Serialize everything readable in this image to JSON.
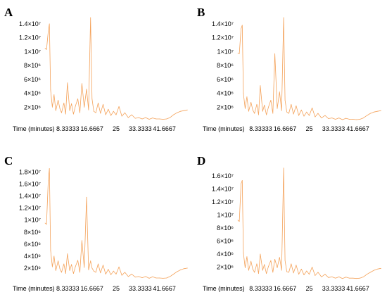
{
  "chart_data": [
    {
      "type": "line",
      "label": "A",
      "xlabel": "Time (minutes)",
      "ylabel": "",
      "xticks": [
        "8.33333",
        "16.6667",
        "25",
        "33.3333",
        "41.6667"
      ],
      "yticks": [
        "2×10⁶",
        "4×10⁶",
        "6×10⁶",
        "8×10⁶",
        "1×10⁷",
        "1.2×10⁷",
        "1.4×10⁷"
      ],
      "xlim": [
        0,
        50
      ],
      "ylim": [
        0,
        15000000
      ],
      "series": [
        {
          "color": "#f4a25a",
          "x": [
            0.5,
            1.0,
            1.6,
            2.0,
            2.4,
            3.0,
            3.6,
            4.2,
            5.0,
            5.6,
            6.2,
            7.0,
            7.6,
            8.2,
            9.0,
            9.6,
            10.3,
            11.0,
            11.8,
            12.5,
            13.2,
            14.0,
            14.8,
            15.5,
            16.2,
            16.7,
            17.3,
            18.0,
            18.8,
            19.6,
            20.5,
            21.4,
            22.3,
            23.2,
            24.1,
            25.0,
            26.0,
            27.0,
            28.0,
            29.2,
            30.4,
            31.6,
            32.8,
            34.0,
            35.2,
            36.4,
            37.6,
            38.8,
            40.0,
            41.2,
            42.4,
            43.6,
            44.8,
            46.0,
            47.2,
            48.4,
            49.6
          ],
          "y": [
            10500000,
            10300000,
            12900000,
            14000000,
            4500000,
            2000000,
            3800000,
            1500000,
            3000000,
            1800000,
            1200000,
            2600000,
            1000000,
            5500000,
            1500000,
            2500000,
            1000000,
            2200000,
            3200000,
            1200000,
            5400000,
            2000000,
            4600000,
            1600000,
            14900000,
            3200000,
            1400000,
            1200000,
            2600000,
            1100000,
            2400000,
            900000,
            1700000,
            800000,
            1400000,
            900000,
            2100000,
            700000,
            1200000,
            500000,
            900000,
            400000,
            500000,
            300000,
            500000,
            250000,
            450000,
            300000,
            300000,
            250000,
            300000,
            500000,
            900000,
            1200000,
            1400000,
            1500000,
            1600000
          ]
        }
      ]
    },
    {
      "type": "line",
      "label": "B",
      "xlabel": "Time (minutes)",
      "ylabel": "",
      "xticks": [
        "8.33333",
        "16.6667",
        "25",
        "33.3333",
        "41.6667"
      ],
      "yticks": [
        "2×10⁶",
        "4×10⁶",
        "6×10⁶",
        "8×10⁶",
        "1×10⁷",
        "1.2×10⁷",
        "1.4×10⁷"
      ],
      "xlim": [
        0,
        50
      ],
      "ylim": [
        0,
        15000000
      ],
      "series": [
        {
          "color": "#f4a25a",
          "x": [
            0.5,
            1.0,
            1.6,
            2.0,
            2.4,
            3.0,
            3.6,
            4.2,
            5.0,
            5.6,
            6.2,
            7.0,
            7.6,
            8.2,
            9.0,
            9.6,
            10.3,
            11.0,
            11.8,
            12.5,
            13.2,
            14.0,
            14.8,
            15.5,
            16.2,
            16.7,
            17.3,
            18.0,
            18.8,
            19.6,
            20.5,
            21.4,
            22.3,
            23.2,
            24.1,
            25.0,
            26.0,
            27.0,
            28.0,
            29.2,
            30.4,
            31.6,
            32.8,
            34.0,
            35.2,
            36.4,
            37.6,
            38.8,
            40.0,
            41.2,
            42.4,
            43.6,
            44.8,
            46.0,
            47.2,
            48.4,
            49.6
          ],
          "y": [
            9800000,
            9700000,
            13300000,
            13800000,
            4000000,
            1800000,
            3500000,
            1400000,
            2700000,
            1600000,
            1100000,
            2400000,
            900000,
            5100000,
            1400000,
            2300000,
            900000,
            2000000,
            3000000,
            1100000,
            9700000,
            1800000,
            4200000,
            1500000,
            14900000,
            3000000,
            1300000,
            1100000,
            2400000,
            1000000,
            2200000,
            800000,
            1600000,
            700000,
            1300000,
            800000,
            1900000,
            600000,
            1100000,
            450000,
            800000,
            350000,
            450000,
            250000,
            450000,
            200000,
            400000,
            250000,
            250000,
            200000,
            250000,
            450000,
            800000,
            1100000,
            1300000,
            1400000,
            1500000
          ]
        }
      ]
    },
    {
      "type": "line",
      "label": "C",
      "xlabel": "Time (minutes)",
      "ylabel": "",
      "xticks": [
        "8.33333",
        "16.6667",
        "25",
        "33.3333",
        "41.6667"
      ],
      "yticks": [
        "2×10⁶",
        "4×10⁶",
        "6×10⁶",
        "8×10⁶",
        "1×10⁷",
        "1.2×10⁷",
        "1.4×10⁷",
        "1.6×10⁷",
        "1.8×10⁷"
      ],
      "xlim": [
        0,
        50
      ],
      "ylim": [
        0,
        19000000
      ],
      "series": [
        {
          "color": "#f4a25a",
          "x": [
            0.5,
            1.0,
            1.6,
            2.0,
            2.4,
            3.0,
            3.6,
            4.2,
            5.0,
            5.6,
            6.2,
            7.0,
            7.6,
            8.2,
            9.0,
            9.6,
            10.3,
            11.0,
            11.8,
            12.5,
            13.2,
            14.0,
            14.8,
            15.5,
            16.2,
            16.7,
            17.3,
            18.0,
            18.8,
            19.6,
            20.5,
            21.4,
            22.3,
            23.2,
            24.1,
            25.0,
            26.0,
            27.0,
            28.0,
            29.2,
            30.4,
            31.6,
            32.8,
            34.0,
            35.2,
            36.4,
            37.6,
            38.8,
            40.0,
            41.2,
            42.4,
            43.6,
            44.8,
            46.0,
            47.2,
            48.4,
            49.6
          ],
          "y": [
            9500000,
            9300000,
            16600000,
            18600000,
            5000000,
            2200000,
            4000000,
            1600000,
            3200000,
            1900000,
            1300000,
            2700000,
            1100000,
            4400000,
            1600000,
            2600000,
            1100000,
            2300000,
            3300000,
            1300000,
            6600000,
            2100000,
            13800000,
            1700000,
            3200000,
            2000000,
            1500000,
            1300000,
            2700000,
            1200000,
            2500000,
            1000000,
            1800000,
            900000,
            1500000,
            1000000,
            2200000,
            800000,
            1300000,
            600000,
            1000000,
            500000,
            600000,
            400000,
            600000,
            300000,
            550000,
            350000,
            350000,
            300000,
            350000,
            600000,
            1000000,
            1400000,
            1700000,
            1900000,
            2000000
          ]
        }
      ]
    },
    {
      "type": "line",
      "label": "D",
      "xlabel": "Time (minutes)",
      "ylabel": "",
      "xticks": [
        "8.33333",
        "16.6667",
        "25",
        "33.3333",
        "41.6667"
      ],
      "yticks": [
        "2×10⁶",
        "4×10⁶",
        "6×10⁶",
        "8×10⁶",
        "1×10⁷",
        "1.2×10⁷",
        "1.4×10⁷",
        "1.6×10⁷"
      ],
      "xlim": [
        0,
        50
      ],
      "ylim": [
        0,
        17500000
      ],
      "series": [
        {
          "color": "#f4a25a",
          "x": [
            0.5,
            1.0,
            1.6,
            2.0,
            2.4,
            3.0,
            3.6,
            4.2,
            5.0,
            5.6,
            6.2,
            7.0,
            7.6,
            8.2,
            9.0,
            9.6,
            10.3,
            11.0,
            11.8,
            12.5,
            13.2,
            14.0,
            14.8,
            15.5,
            16.2,
            16.7,
            17.3,
            18.0,
            18.8,
            19.6,
            20.5,
            21.4,
            22.3,
            23.2,
            24.1,
            25.0,
            26.0,
            27.0,
            28.0,
            29.2,
            30.4,
            31.6,
            32.8,
            34.0,
            35.2,
            36.4,
            37.6,
            38.8,
            40.0,
            41.2,
            42.4,
            43.6,
            44.8,
            46.0,
            47.2,
            48.4,
            49.6
          ],
          "y": [
            9200000,
            9000000,
            14800000,
            15300000,
            4200000,
            1900000,
            3600000,
            1500000,
            2900000,
            1700000,
            1200000,
            2500000,
            1000000,
            4000000,
            1500000,
            2400000,
            1000000,
            2100000,
            3000000,
            1200000,
            3200000,
            1900000,
            3500000,
            1500000,
            17200000,
            3000000,
            1300000,
            1200000,
            2500000,
            1100000,
            2300000,
            900000,
            1700000,
            800000,
            1400000,
            900000,
            2000000,
            700000,
            1200000,
            500000,
            900000,
            400000,
            500000,
            300000,
            500000,
            250000,
            450000,
            300000,
            300000,
            250000,
            300000,
            500000,
            900000,
            1200000,
            1500000,
            1700000,
            1800000
          ]
        }
      ]
    }
  ]
}
